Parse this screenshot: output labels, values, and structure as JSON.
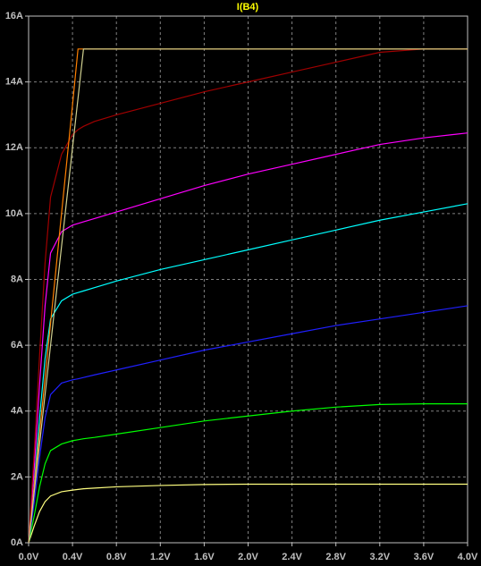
{
  "chart_data": {
    "type": "line",
    "title": "I(B4)",
    "title_color": "#ffff00",
    "x": [
      0,
      0.05,
      0.1,
      0.15,
      0.2,
      0.3,
      0.4,
      0.45,
      0.5,
      0.6,
      0.8,
      1.2,
      1.6,
      2.0,
      2.4,
      2.8,
      3.2,
      3.6,
      4.0
    ],
    "series": [
      {
        "color": "#ffff80",
        "values": [
          0,
          0.5,
          0.95,
          1.25,
          1.42,
          1.55,
          1.6,
          1.62,
          1.64,
          1.66,
          1.7,
          1.74,
          1.77,
          1.78,
          1.78,
          1.78,
          1.78,
          1.78,
          1.78
        ]
      },
      {
        "color": "#00ff00",
        "values": [
          0,
          0.8,
          1.7,
          2.4,
          2.8,
          3.0,
          3.1,
          3.13,
          3.16,
          3.2,
          3.3,
          3.5,
          3.7,
          3.85,
          4.0,
          4.12,
          4.2,
          4.22,
          4.22
        ]
      },
      {
        "color": "#2020ff",
        "values": [
          0,
          1.2,
          2.6,
          3.8,
          4.5,
          4.85,
          4.95,
          4.98,
          5.02,
          5.1,
          5.25,
          5.55,
          5.85,
          6.1,
          6.35,
          6.6,
          6.8,
          7.0,
          7.2
        ]
      },
      {
        "color": "#00ffff",
        "values": [
          0,
          1.7,
          3.8,
          5.6,
          6.8,
          7.35,
          7.55,
          7.6,
          7.65,
          7.75,
          7.95,
          8.3,
          8.6,
          8.9,
          9.2,
          9.5,
          9.8,
          10.05,
          10.3
        ]
      },
      {
        "color": "#ff00ff",
        "values": [
          0,
          2.2,
          4.8,
          7.2,
          8.8,
          9.45,
          9.65,
          9.7,
          9.75,
          9.85,
          10.05,
          10.45,
          10.85,
          11.2,
          11.5,
          11.8,
          12.1,
          12.3,
          12.45
        ]
      },
      {
        "color": "#a00000",
        "values": [
          0,
          2.7,
          5.7,
          8.5,
          10.5,
          11.8,
          12.4,
          12.55,
          12.65,
          12.8,
          13.0,
          13.35,
          13.7,
          14.0,
          14.3,
          14.6,
          14.9,
          15,
          15
        ]
      },
      {
        "color": "#ff8000",
        "values": [
          0,
          1.67,
          3.33,
          5,
          6.67,
          10,
          13.3,
          15,
          15,
          15,
          15,
          15,
          15,
          15,
          15,
          15,
          15,
          15,
          15
        ]
      },
      {
        "color": "#d0d090",
        "values": [
          0,
          1.5,
          3,
          4.5,
          6,
          9,
          12,
          13.5,
          15,
          15,
          15,
          15,
          15,
          15,
          15,
          15,
          15,
          15,
          15
        ]
      }
    ],
    "xlim": [
      0,
      4.0
    ],
    "ylim": [
      0,
      16
    ],
    "xticks": [
      {
        "value": 0,
        "label": "0.0V"
      },
      {
        "value": 0.4,
        "label": "0.4V"
      },
      {
        "value": 0.8,
        "label": "0.8V"
      },
      {
        "value": 1.2,
        "label": "1.2V"
      },
      {
        "value": 1.6,
        "label": "1.6V"
      },
      {
        "value": 2.0,
        "label": "2.0V"
      },
      {
        "value": 2.4,
        "label": "2.4V"
      },
      {
        "value": 2.8,
        "label": "2.8V"
      },
      {
        "value": 3.2,
        "label": "3.2V"
      },
      {
        "value": 3.6,
        "label": "3.6V"
      },
      {
        "value": 4.0,
        "label": "4.0V"
      }
    ],
    "yticks": [
      {
        "value": 0,
        "label": "0A"
      },
      {
        "value": 2,
        "label": "2A"
      },
      {
        "value": 4,
        "label": "4A"
      },
      {
        "value": 6,
        "label": "6A"
      },
      {
        "value": 8,
        "label": "8A"
      },
      {
        "value": 10,
        "label": "10A"
      },
      {
        "value": 12,
        "label": "12A"
      },
      {
        "value": 14,
        "label": "14A"
      },
      {
        "value": 16,
        "label": "16A"
      }
    ],
    "grid": true
  }
}
